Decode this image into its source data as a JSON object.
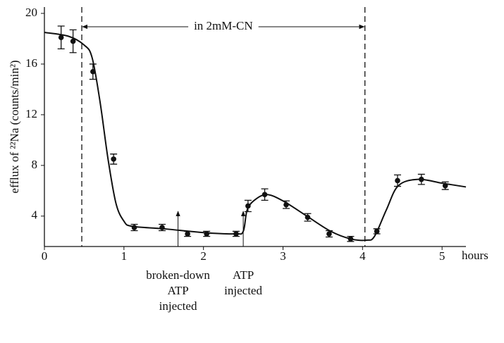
{
  "chart_data": {
    "type": "scatter",
    "ylabel": "efflux of ²²Na (counts/min²)",
    "xlabel": "hours",
    "xlim": [
      0,
      5.3
    ],
    "ylim": [
      1.6,
      20.5
    ],
    "xticks": [
      0,
      1,
      2,
      3,
      4,
      5
    ],
    "yticks": [
      4,
      8,
      12,
      16,
      20
    ],
    "color": "#111111",
    "series": [
      {
        "x": [
          0.21,
          0.36,
          0.61,
          0.87,
          1.13,
          1.48,
          1.8,
          2.04,
          2.41,
          2.56,
          2.77,
          3.04,
          3.31,
          3.58,
          3.85,
          4.18,
          4.44,
          4.74,
          5.04
        ],
        "values": [
          18.1,
          17.8,
          15.4,
          8.5,
          3.1,
          3.1,
          2.6,
          2.6,
          2.6,
          4.8,
          5.7,
          4.9,
          3.9,
          2.6,
          2.2,
          2.8,
          6.8,
          6.9,
          6.4
        ],
        "errors": [
          0.9,
          0.9,
          0.6,
          0.4,
          0.25,
          0.25,
          0.2,
          0.2,
          0.2,
          0.45,
          0.45,
          0.3,
          0.3,
          0.25,
          0.2,
          0.2,
          0.45,
          0.4,
          0.3
        ]
      },
      {
        "x": [
          0,
          0.3,
          0.5,
          0.6,
          0.7,
          0.8,
          0.9,
          1.0,
          1.1,
          1.5,
          2.0,
          2.4,
          2.5,
          2.55,
          2.65,
          2.8,
          3.0,
          3.3,
          3.6,
          3.85,
          4.05,
          4.15,
          4.3,
          4.45,
          4.7,
          5.0,
          5.3
        ],
        "values": [
          18.5,
          18.2,
          17.5,
          16.5,
          13,
          8.5,
          5,
          3.6,
          3.2,
          3.0,
          2.7,
          2.6,
          2.8,
          4.5,
          5.3,
          5.7,
          5.2,
          4.0,
          2.8,
          2.2,
          2.1,
          2.4,
          4.5,
          6.4,
          6.9,
          6.6,
          6.3
        ]
      }
    ],
    "vlines": [
      0.47,
      4.03
    ],
    "span_label": "in 2mM-CN",
    "annotations": [
      {
        "x": 1.68,
        "lines": [
          "broken-down",
          "ATP",
          "injected"
        ]
      },
      {
        "x": 2.5,
        "lines": [
          "ATP",
          "injected"
        ]
      }
    ]
  }
}
